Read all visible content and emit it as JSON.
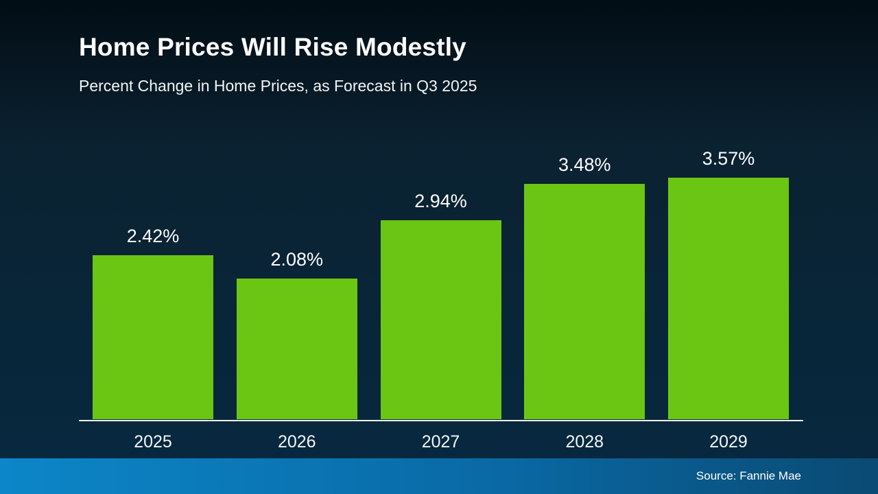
{
  "header": {
    "title": "Home Prices Will Rise Modestly",
    "subtitle": "Percent Change in Home Prices, as Forecast in Q3 2025"
  },
  "chart_data": {
    "type": "bar",
    "title": "Home Prices Will Rise Modestly",
    "subtitle": "Percent Change in Home Prices, as Forecast in Q3 2025",
    "categories": [
      "2025",
      "2026",
      "2027",
      "2028",
      "2029"
    ],
    "values": [
      2.42,
      2.08,
      2.94,
      3.48,
      3.57
    ],
    "value_labels": [
      "2.42%",
      "2.08%",
      "2.94%",
      "3.48%",
      "3.57%"
    ],
    "xlabel": "",
    "ylabel": "Percent change in home prices",
    "ylim": [
      0,
      4
    ],
    "grid": false,
    "legend": "none",
    "bar_color": "#6bc614"
  },
  "footer": {
    "source": "Source: Fannie Mae"
  },
  "colors": {
    "background_top": "#020d14",
    "background_bottom": "#062940",
    "bar_green": "#6bc614",
    "axis_line": "#ffffff",
    "footer_gradient_left": "#0c86c8",
    "footer_gradient_right": "#0a4a73",
    "text": "#ffffff"
  }
}
